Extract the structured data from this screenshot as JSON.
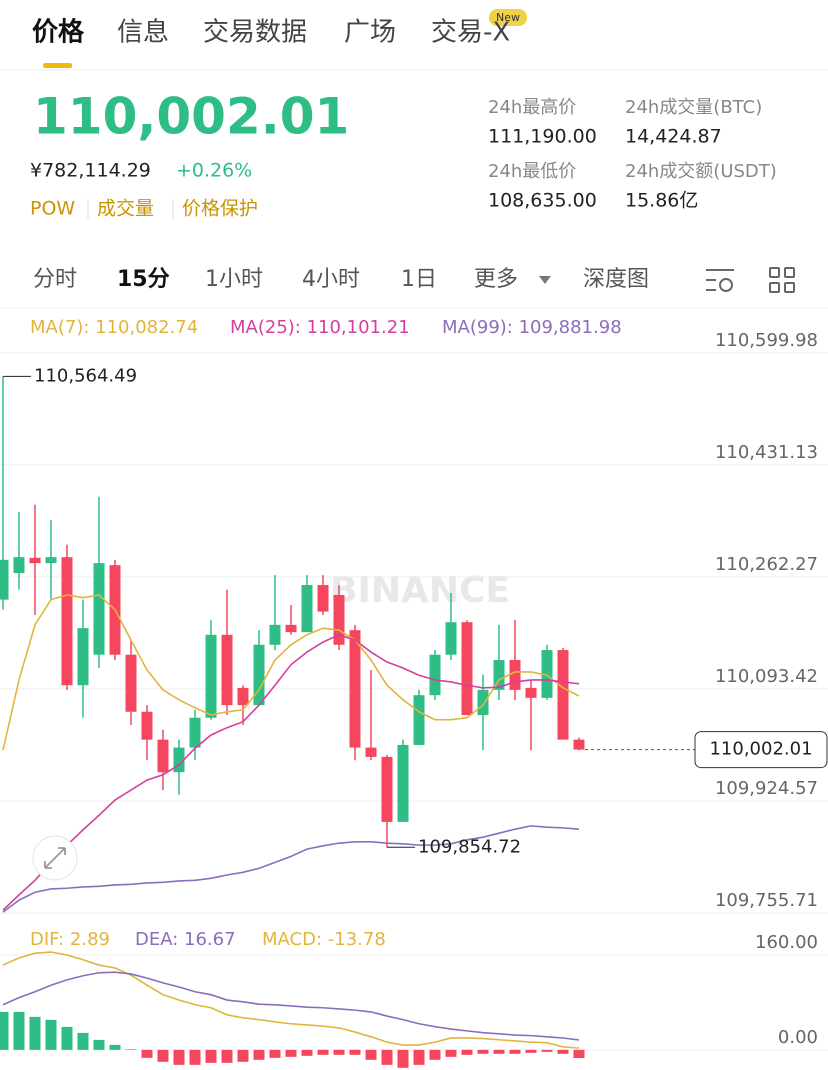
{
  "tabs": [
    "价格",
    "信息",
    "交易数据",
    "广场",
    "交易-X"
  ],
  "tab_badge": "New",
  "ticker": {
    "price": "110,002.01",
    "cny": "¥782,114.29",
    "change": "+0.26%",
    "tags": [
      "POW",
      "成交量",
      "价格保护"
    ]
  },
  "stats": [
    {
      "label": "24h最高价",
      "value": "111,190.00"
    },
    {
      "label": "24h成交量(BTC)",
      "value": "14,424.87"
    },
    {
      "label": "24h最低价",
      "value": "108,635.00"
    },
    {
      "label": "24h成交额(USDT)",
      "value": "15.86亿"
    }
  ],
  "intervals": [
    "分时",
    "15分",
    "1小时",
    "4小时",
    "1日",
    "更多",
    "深度图"
  ],
  "chart_data": [
    {
      "type": "candlestick",
      "watermark": "BINANCE",
      "up_color": "#2ebd85",
      "down_color": "#f6465d",
      "grid": true,
      "open": [
        110228,
        110268,
        110291,
        110283,
        110292,
        110099,
        110145,
        110280,
        110145,
        110059,
        110017,
        109968,
        110005,
        110050,
        110175,
        110095,
        110069,
        110160,
        110190,
        110179,
        110250,
        110235,
        110182,
        110005,
        109991,
        109893,
        110009,
        110084,
        110145,
        110194,
        110054,
        110092,
        110137,
        110095,
        110080,
        110152,
        110017
      ],
      "high": [
        110564.49,
        110360,
        110371,
        110348,
        110311,
        110228,
        110383,
        110288,
        110167,
        110069,
        110032,
        110017,
        110062,
        110197,
        110243,
        110099,
        110182,
        110265,
        110220,
        110265,
        110265,
        110250,
        110190,
        110122,
        109994,
        110017,
        110092,
        110152,
        110238,
        110197,
        110115,
        110190,
        110197,
        110107,
        110160,
        110155,
        110020
      ],
      "low": [
        110213,
        110243,
        110205,
        110228,
        110092,
        110050,
        110125,
        110137,
        110039,
        109986,
        109941,
        109934,
        109986,
        110047,
        110054,
        110039,
        110069,
        110152,
        110175,
        110179,
        110205,
        110152,
        109986,
        109986,
        109854.72,
        109893,
        110009,
        110077,
        110137,
        110054,
        110001,
        110077,
        110077,
        110001,
        110077,
        110017,
        110001
      ],
      "close": [
        110288,
        110292,
        110283,
        110292,
        110099,
        110185,
        110283,
        110145,
        110059,
        110017,
        109968,
        110005,
        110050,
        110175,
        110069,
        110069,
        110160,
        110190,
        110179,
        110250,
        110210,
        110160,
        110005,
        109991,
        109893,
        110009,
        110084,
        110145,
        110194,
        110054,
        110092,
        110137,
        110092,
        110080,
        110152,
        110017,
        110002.01
      ],
      "series": [
        {
          "name": "MA(7): 110,082.74",
          "color": "#e2b43c",
          "values": [
            110001,
            110107,
            110190,
            110228,
            110235,
            110231,
            110235,
            110213,
            110167,
            110122,
            110092,
            110077,
            110065,
            110054,
            110059,
            110062,
            110092,
            110137,
            110160,
            110175,
            110185,
            110182,
            110167,
            110137,
            110099,
            110077,
            110059,
            110047,
            110047,
            110050,
            110069,
            110107,
            110119,
            110119,
            110114,
            110095,
            110082.74
          ]
        },
        {
          "name": "MA(25): 110,101.21",
          "color": "#d43f9e",
          "values": [
            109760,
            109783,
            109805,
            109832,
            109858,
            109881,
            109903,
            109926,
            109941,
            109956,
            109964,
            109979,
            110004,
            110024,
            110035,
            110044,
            110069,
            110099,
            110130,
            110149,
            110164,
            110175,
            110167,
            110149,
            110134,
            110125,
            110114,
            110107,
            110104,
            110099,
            110095,
            110096,
            110104,
            110107,
            110107,
            110104,
            110101.21
          ]
        },
        {
          "name": "MA(99): 109,881.98",
          "color": "#8c6dbd",
          "values": [
            109757,
            109775,
            109787,
            109792,
            109793,
            109795,
            109796,
            109798,
            109799,
            109801,
            109802,
            109804,
            109805,
            109808,
            109813,
            109817,
            109823,
            109832,
            109841,
            109852,
            109857,
            109861,
            109863,
            109863,
            109861,
            109860,
            109858,
            109858,
            109860,
            109866,
            109870,
            109876,
            109882,
            109887,
            109885,
            109884,
            109881.98
          ]
        }
      ],
      "ylim": [
        109755.71,
        110657
      ],
      "yticks": [
        {
          "value": 110599.98,
          "label": "110,599.98"
        },
        {
          "value": 110431.13,
          "label": "110,431.13"
        },
        {
          "value": 110262.27,
          "label": "110,262.27"
        },
        {
          "value": 110093.42,
          "label": "110,093.42"
        },
        {
          "value": 109924.57,
          "label": "109,924.57"
        },
        {
          "value": 109755.71,
          "label": "109,755.71"
        }
      ],
      "high_label": "110,564.49",
      "low_label": "109,854.72",
      "last_label": "110,002.01"
    },
    {
      "type": "macd",
      "ylim": [
        -34,
        219
      ],
      "yticks": [
        {
          "value": 160,
          "label": "160.00"
        },
        {
          "value": 0,
          "label": "0.00"
        }
      ],
      "series": [
        {
          "name": "DIF: 2.89",
          "color": "#e2b43c",
          "values": [
            143,
            155,
            163,
            165,
            160,
            152,
            143,
            138,
            126,
            109,
            93,
            84,
            76,
            71,
            59,
            54,
            51,
            47,
            44,
            42,
            40,
            37,
            30,
            22,
            13,
            8,
            8,
            13,
            20,
            20,
            19,
            17,
            15,
            13,
            12,
            5,
            2.89
          ]
        },
        {
          "name": "DEA: 16.67",
          "color": "#8c6dbd",
          "values": [
            76,
            88,
            98,
            109,
            118,
            125,
            130,
            131,
            128,
            121,
            113,
            106,
            98,
            93,
            84,
            81,
            77,
            76,
            74,
            72,
            71,
            69,
            67,
            64,
            57,
            51,
            44,
            39,
            35,
            32,
            29,
            27,
            25,
            24,
            22,
            20,
            16.67
          ]
        }
      ],
      "histogram": {
        "name": "MACD: -13.78",
        "color": "#e2b43c",
        "up_color": "#2ebd85",
        "down_color": "#f6465d",
        "values": [
          64,
          64,
          55.6,
          50.5,
          38.7,
          28.6,
          16.8,
          8.4,
          1,
          -13.5,
          -20.2,
          -25.3,
          -25.3,
          -21.9,
          -21.9,
          -20.2,
          -16.8,
          -13.5,
          -11.8,
          -10.1,
          -8.4,
          -8.4,
          -8.4,
          -16.8,
          -25.3,
          -30.3,
          -25.3,
          -16.8,
          -11.8,
          -8.4,
          -6.7,
          -6.7,
          -6.7,
          -5.1,
          -3.4,
          -6.7,
          -13.78
        ]
      }
    }
  ]
}
